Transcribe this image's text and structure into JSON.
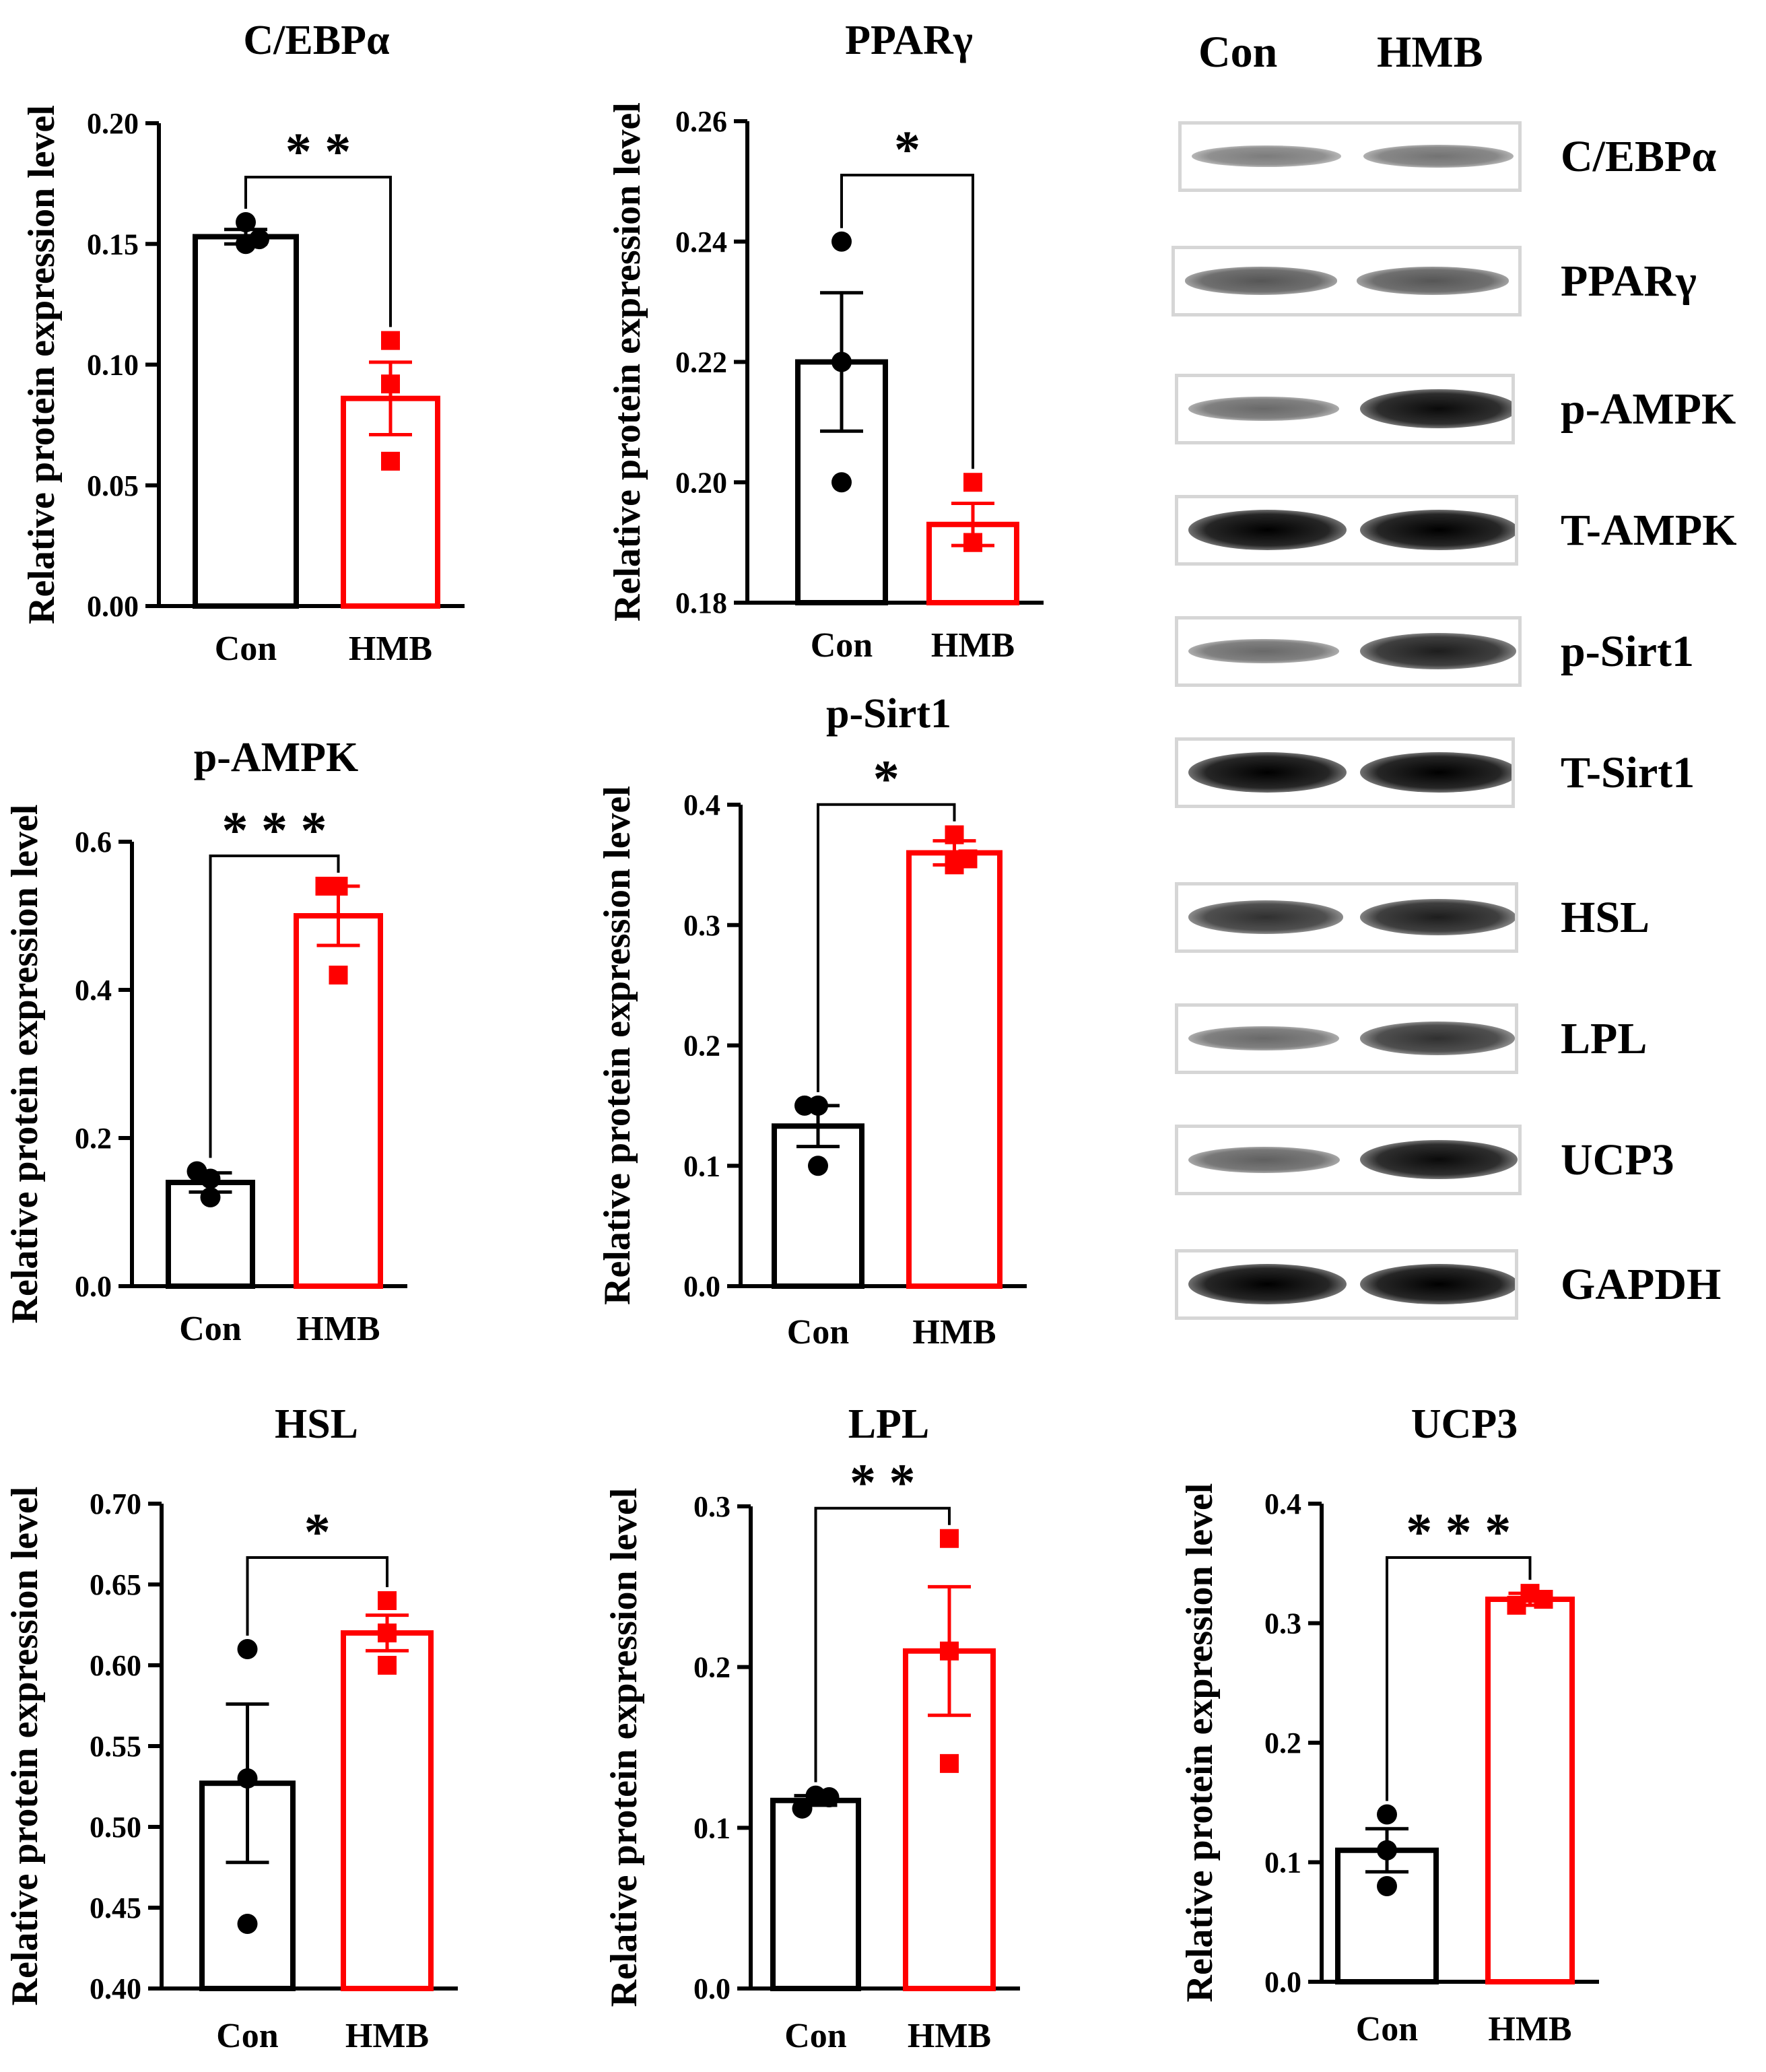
{
  "chart_data": [
    {
      "type": "bar",
      "title": "C/EBPα",
      "ylabel": "Relative protein expression level",
      "categories": [
        "Con",
        "HMB"
      ],
      "values": [
        0.153,
        0.086
      ],
      "errors": [
        0.003,
        0.015
      ],
      "points": [
        [
          0.159,
          0.15,
          0.152
        ],
        [
          0.11,
          0.092,
          0.06
        ]
      ],
      "ylim": [
        0.0,
        0.2
      ],
      "yticks": [
        "0.00",
        "0.05",
        "0.10",
        "0.15",
        "0.20"
      ],
      "significance": "* *",
      "colors": [
        "#000000",
        "#ff0000"
      ]
    },
    {
      "type": "bar",
      "title": "PPARγ",
      "ylabel": "Relative protein expression level",
      "categories": [
        "Con",
        "HMB"
      ],
      "values": [
        0.22,
        0.193
      ],
      "errors": [
        0.0115,
        0.0035
      ],
      "points": [
        [
          0.24,
          0.22,
          0.2
        ],
        [
          0.2,
          0.19,
          0.19
        ]
      ],
      "ylim": [
        0.18,
        0.26
      ],
      "yticks": [
        "0.18",
        "0.20",
        "0.22",
        "0.24",
        "0.26"
      ],
      "significance": "*",
      "colors": [
        "#000000",
        "#ff0000"
      ]
    },
    {
      "type": "bar",
      "title": "p-AMPK",
      "ylabel": "Relative protein expression level",
      "categories": [
        "Con",
        "HMB"
      ],
      "values": [
        0.14,
        0.5
      ],
      "errors": [
        0.013,
        0.04
      ],
      "points": [
        [
          0.155,
          0.145,
          0.12
        ],
        [
          0.54,
          0.54,
          0.42
        ]
      ],
      "ylim": [
        0.0,
        0.6
      ],
      "yticks": [
        "0.0",
        "0.2",
        "0.4",
        "0.6"
      ],
      "significance": "* * *",
      "colors": [
        "#000000",
        "#ff0000"
      ]
    },
    {
      "type": "bar",
      "title": "p-Sirt1",
      "ylabel": "Relative protein expression level",
      "categories": [
        "Con",
        "HMB"
      ],
      "values": [
        0.133,
        0.36
      ],
      "errors": [
        0.017,
        0.01
      ],
      "points": [
        [
          0.15,
          0.15,
          0.1
        ],
        [
          0.35,
          0.375,
          0.355
        ]
      ],
      "ylim": [
        0.0,
        0.4
      ],
      "yticks": [
        "0.0",
        "0.1",
        "0.2",
        "0.3",
        "0.4"
      ],
      "significance": "*",
      "colors": [
        "#000000",
        "#ff0000"
      ]
    },
    {
      "type": "bar",
      "title": "HSL",
      "ylabel": "Relative protein expression level",
      "categories": [
        "Con",
        "HMB"
      ],
      "values": [
        0.527,
        0.62
      ],
      "errors": [
        0.049,
        0.011
      ],
      "points": [
        [
          0.61,
          0.53,
          0.44
        ],
        [
          0.64,
          0.62,
          0.6
        ]
      ],
      "ylim": [
        0.4,
        0.7
      ],
      "yticks": [
        "0.40",
        "0.45",
        "0.50",
        "0.55",
        "0.60",
        "0.65",
        "0.70"
      ],
      "significance": "*",
      "colors": [
        "#000000",
        "#ff0000"
      ]
    },
    {
      "type": "bar",
      "title": "LPL",
      "ylabel": "Relative protein expression level",
      "categories": [
        "Con",
        "HMB"
      ],
      "values": [
        0.117,
        0.21
      ],
      "errors": [
        0.003,
        0.04
      ],
      "points": [
        [
          0.112,
          0.12,
          0.119
        ],
        [
          0.28,
          0.21,
          0.14
        ]
      ],
      "ylim": [
        0.0,
        0.3
      ],
      "yticks": [
        "0.0",
        "0.1",
        "0.2",
        "0.3"
      ],
      "significance": "* *",
      "colors": [
        "#000000",
        "#ff0000"
      ]
    },
    {
      "type": "bar",
      "title": "UCP3",
      "ylabel": "Relative protein expression level",
      "categories": [
        "Con",
        "HMB"
      ],
      "values": [
        0.11,
        0.32
      ],
      "errors": [
        0.018,
        0.005
      ],
      "points": [
        [
          0.14,
          0.11,
          0.08
        ],
        [
          0.315,
          0.325,
          0.32
        ]
      ],
      "ylim": [
        0.0,
        0.4
      ],
      "yticks": [
        "0.0",
        "0.1",
        "0.2",
        "0.3",
        "0.4"
      ],
      "significance": "* * *",
      "colors": [
        "#000000",
        "#ff0000"
      ]
    }
  ],
  "blot": {
    "lane_headers": [
      "Con",
      "HMB"
    ],
    "labels": [
      "C/EBPα",
      "PPARγ",
      "p-AMPK",
      "T-AMPK",
      "p-Sirt1",
      "T-Sirt1",
      "HSL",
      "LPL",
      "UCP3",
      "GAPDH"
    ],
    "intensity": [
      [
        0.35,
        0.4
      ],
      [
        0.55,
        0.55
      ],
      [
        0.45,
        0.95
      ],
      [
        1.0,
        1.0
      ],
      [
        0.45,
        0.85
      ],
      [
        1.0,
        1.0
      ],
      [
        0.75,
        0.85
      ],
      [
        0.45,
        0.75
      ],
      [
        0.5,
        0.95
      ],
      [
        1.0,
        1.0
      ]
    ]
  }
}
